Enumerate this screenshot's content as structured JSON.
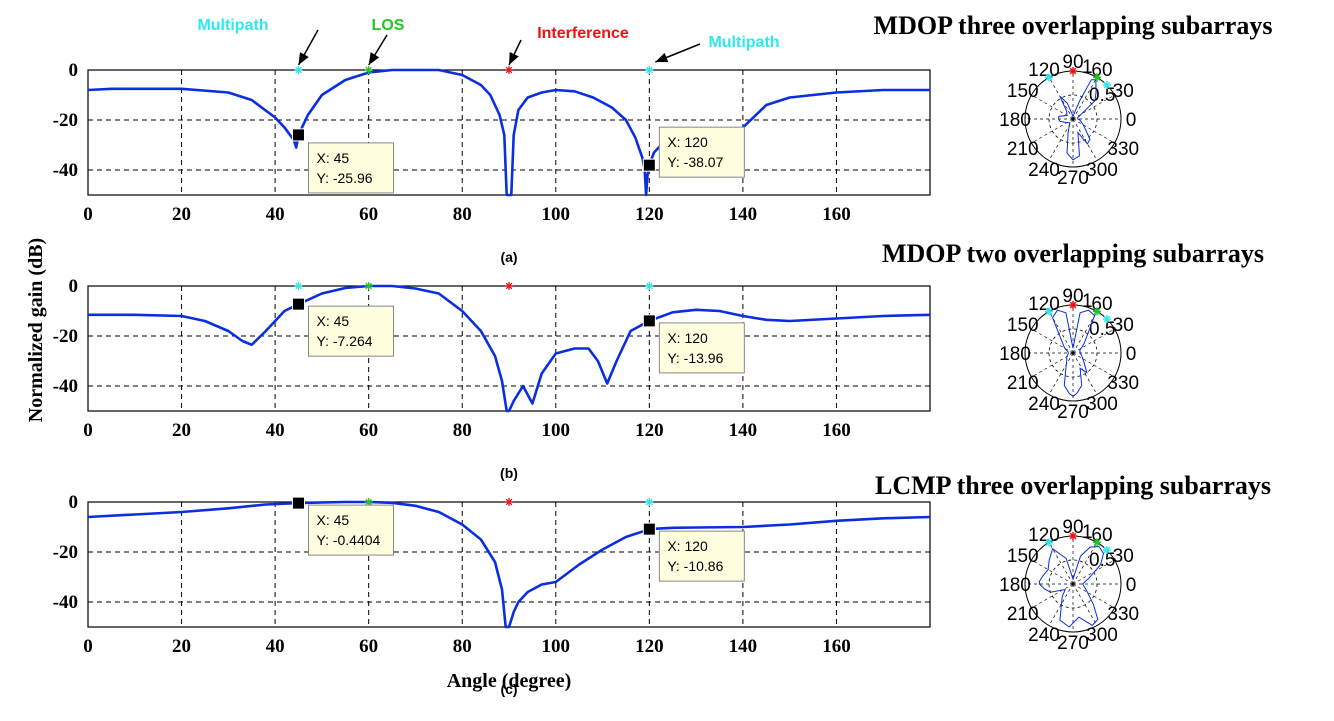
{
  "figure": {
    "ylabel": "Normalized gain (dB)",
    "xlabel": "Angle (degree)",
    "annotations": [
      {
        "text": "Multipath",
        "color": "#2ee8ee",
        "deg": 45
      },
      {
        "text": "LOS",
        "color": "#22c722",
        "deg": 60
      },
      {
        "text": "Interference",
        "color": "#ee1111",
        "deg": 90
      },
      {
        "text": "Multipath",
        "color": "#2ee8ee",
        "deg": 120
      }
    ]
  },
  "chart_data": [
    {
      "type": "line",
      "title": "MDOP three overlapping subarrays",
      "sublabel": "(a)",
      "xlim": [
        0,
        180
      ],
      "ylim": [
        -50,
        0
      ],
      "xticks": [
        0,
        20,
        40,
        60,
        80,
        100,
        120,
        140,
        160
      ],
      "yticks": [
        0,
        -20,
        -40
      ],
      "grid": true,
      "line_color": "#0a2ee0",
      "markers": [
        {
          "x": 45,
          "color": "#2ee8ee"
        },
        {
          "x": 60,
          "color": "#22c722"
        },
        {
          "x": 90,
          "color": "#ee1111"
        },
        {
          "x": 120,
          "color": "#2ee8ee"
        }
      ],
      "x": [
        0,
        5,
        20,
        30,
        35,
        40,
        42,
        44,
        44.5,
        45,
        47,
        50,
        55,
        60,
        65,
        70,
        75,
        80,
        84,
        86,
        88,
        89,
        89.5,
        90,
        90.5,
        91,
        92,
        94,
        97,
        100,
        104,
        108,
        112,
        115,
        117,
        118.5,
        119,
        119.3,
        119.6,
        120,
        121,
        123,
        125,
        127,
        130,
        134,
        138,
        140,
        145,
        150,
        160,
        170,
        180
      ],
      "y": [
        -8,
        -7.5,
        -7.5,
        -9,
        -12,
        -19,
        -23,
        -28,
        -31,
        -26,
        -18,
        -10,
        -4,
        -1,
        0,
        0,
        0,
        -2,
        -6,
        -10,
        -18,
        -26,
        -50,
        -50,
        -50,
        -26,
        -16,
        -11,
        -9,
        -8,
        -8.5,
        -11,
        -15,
        -20,
        -27,
        -35,
        -40,
        -50,
        -42,
        -38,
        -33,
        -29,
        -27,
        -26,
        -25,
        -26,
        -27,
        -23,
        -14,
        -11,
        -9,
        -8,
        -8
      ],
      "datatips": [
        {
          "x": 45,
          "y": -25.96,
          "label_x": "X: 45",
          "label_y": "Y: -25.96"
        },
        {
          "x": 120,
          "y": -38.07,
          "label_x": "X: 120",
          "label_y": "Y: -38.07"
        }
      ],
      "polar": {
        "radial_tick": "1",
        "radial_half": "0.5",
        "angle_labels": [
          "90",
          "60",
          "30",
          "0",
          "330",
          "300",
          "270",
          "240",
          "210",
          "180",
          "150",
          "120"
        ],
        "theta": [
          0,
          15,
          30,
          40,
          50,
          60,
          65,
          70,
          80,
          90,
          100,
          110,
          120,
          130,
          150,
          170,
          180,
          190,
          210,
          230,
          250,
          260,
          270,
          280,
          290,
          300,
          310,
          330,
          350,
          360
        ],
        "r": [
          0.1,
          0.1,
          0.2,
          0.6,
          0.75,
          0.95,
          0.9,
          0.4,
          0.1,
          0.05,
          0.1,
          0.35,
          0.55,
          0.2,
          0.15,
          0.3,
          0.3,
          0.28,
          0.15,
          0.1,
          0.3,
          0.72,
          0.85,
          0.78,
          0.3,
          0.6,
          0.55,
          0.25,
          0.15,
          0.1
        ]
      }
    },
    {
      "type": "line",
      "title": "MDOP two overlapping subarrays",
      "sublabel": "(b)",
      "xlim": [
        0,
        180
      ],
      "ylim": [
        -50,
        0
      ],
      "xticks": [
        0,
        20,
        40,
        60,
        80,
        100,
        120,
        140,
        160
      ],
      "yticks": [
        0,
        -20,
        -40
      ],
      "grid": true,
      "line_color": "#0a2ee0",
      "markers": [
        {
          "x": 45,
          "color": "#2ee8ee"
        },
        {
          "x": 60,
          "color": "#22c722"
        },
        {
          "x": 90,
          "color": "#ee1111"
        },
        {
          "x": 120,
          "color": "#2ee8ee"
        }
      ],
      "x": [
        0,
        10,
        20,
        25,
        30,
        33,
        35,
        38,
        42,
        45,
        50,
        55,
        60,
        65,
        70,
        75,
        80,
        84,
        87,
        88.5,
        89.5,
        90,
        91,
        93,
        95,
        97,
        100,
        104,
        107,
        109,
        111,
        113,
        116,
        120,
        125,
        130,
        135,
        140,
        145,
        150,
        160,
        170,
        180
      ],
      "y": [
        -11.5,
        -11.5,
        -12,
        -14,
        -18,
        -22,
        -23.5,
        -18,
        -10,
        -7.264,
        -3,
        -0.8,
        0,
        0,
        -1,
        -3,
        -10,
        -18,
        -28,
        -38,
        -50,
        -50,
        -46,
        -40,
        -47,
        -35,
        -27,
        -25,
        -25,
        -30,
        -39,
        -30,
        -18,
        -13.96,
        -10.5,
        -9.5,
        -10,
        -12,
        -13.5,
        -14,
        -13,
        -12,
        -11.5
      ],
      "datatips": [
        {
          "x": 45,
          "y": -7.264,
          "label_x": "X: 45",
          "label_y": "Y: -7.264"
        },
        {
          "x": 120,
          "y": -13.96,
          "label_x": "X: 120",
          "label_y": "Y: -13.96"
        }
      ],
      "polar": {
        "radial_tick": "1",
        "radial_half": "0.5",
        "angle_labels": [
          "90",
          "60",
          "30",
          "0",
          "330",
          "300",
          "270",
          "240",
          "210",
          "180",
          "150",
          "120"
        ],
        "theta": [
          0,
          20,
          40,
          55,
          60,
          70,
          80,
          90,
          100,
          110,
          120,
          130,
          150,
          170,
          180,
          190,
          210,
          230,
          245,
          255,
          265,
          270,
          275,
          285,
          295,
          305,
          320,
          340,
          360
        ],
        "r": [
          0.15,
          0.15,
          0.3,
          0.6,
          0.9,
          0.95,
          0.85,
          0.1,
          0.85,
          0.95,
          0.85,
          0.4,
          0.2,
          0.1,
          0.1,
          0.1,
          0.15,
          0.2,
          0.35,
          0.7,
          0.85,
          0.9,
          0.85,
          0.7,
          0.35,
          0.5,
          0.3,
          0.2,
          0.15
        ]
      }
    },
    {
      "type": "line",
      "title": "LCMP three overlapping subarrays",
      "sublabel": "(c)",
      "xlim": [
        0,
        180
      ],
      "ylim": [
        -50,
        0
      ],
      "xticks": [
        0,
        20,
        40,
        60,
        80,
        100,
        120,
        140,
        160
      ],
      "yticks": [
        0,
        -20,
        -40
      ],
      "grid": true,
      "line_color": "#0a2ee0",
      "markers": [
        {
          "x": 45,
          "color": "#2ee8ee"
        },
        {
          "x": 60,
          "color": "#22c722"
        },
        {
          "x": 90,
          "color": "#ee1111"
        },
        {
          "x": 120,
          "color": "#2ee8ee"
        }
      ],
      "x": [
        0,
        10,
        20,
        30,
        38,
        45,
        50,
        55,
        60,
        65,
        70,
        75,
        80,
        84,
        87,
        88.5,
        89.3,
        90,
        91,
        92,
        94,
        97,
        100,
        105,
        110,
        115,
        119,
        120,
        125,
        130,
        140,
        150,
        160,
        170,
        180
      ],
      "y": [
        -6,
        -5,
        -4,
        -2.5,
        -1,
        -0.44,
        -0.2,
        0,
        0,
        -0.3,
        -1.5,
        -4,
        -9,
        -15,
        -24,
        -35,
        -50,
        -50,
        -44,
        -40,
        -36,
        -33,
        -32,
        -25,
        -19,
        -14,
        -11.5,
        -10.86,
        -10.3,
        -10.2,
        -10,
        -9,
        -7.5,
        -6.5,
        -6
      ],
      "datatips": [
        {
          "x": 45,
          "y": -0.4404,
          "label_x": "X: 45",
          "label_y": "Y: -0.4404"
        },
        {
          "x": 120,
          "y": -10.86,
          "label_x": "X: 120",
          "label_y": "Y: -10.86"
        }
      ],
      "polar": {
        "radial_tick": "1",
        "radial_half": "0.5",
        "angle_labels": [
          "90",
          "60",
          "30",
          "0",
          "330",
          "300",
          "270",
          "240",
          "210",
          "180",
          "150",
          "120"
        ],
        "theta": [
          0,
          20,
          35,
          45,
          55,
          65,
          75,
          90,
          105,
          120,
          135,
          150,
          165,
          175,
          180,
          190,
          200,
          215,
          230,
          250,
          265,
          280,
          295,
          305,
          315,
          330,
          345,
          360
        ],
        "r": [
          0.2,
          0.35,
          0.7,
          0.9,
          0.95,
          0.85,
          0.6,
          0.1,
          0.55,
          0.85,
          0.7,
          0.6,
          0.65,
          0.7,
          0.7,
          0.6,
          0.5,
          0.2,
          0.35,
          0.8,
          0.9,
          0.7,
          0.95,
          0.9,
          0.6,
          0.35,
          0.25,
          0.2
        ]
      }
    }
  ]
}
